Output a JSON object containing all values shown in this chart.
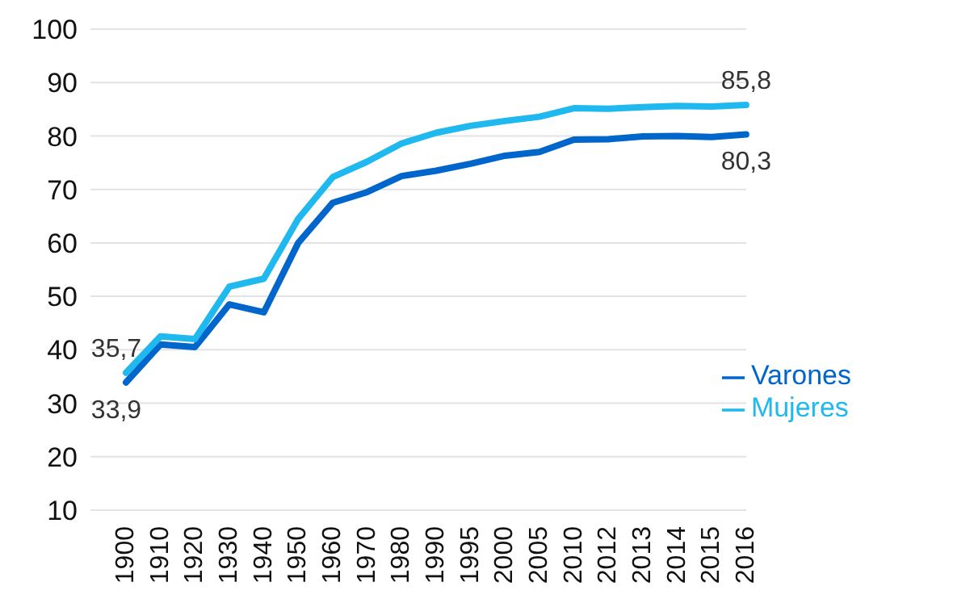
{
  "chart_data": {
    "type": "line",
    "categories": [
      "1900",
      "1910",
      "1920",
      "1930",
      "1940",
      "1950",
      "1960",
      "1970",
      "1980",
      "1990",
      "1995",
      "2000",
      "2005",
      "2010",
      "2012",
      "2013",
      "2014",
      "2015",
      "2016"
    ],
    "series": [
      {
        "name": "Varones",
        "color": "#0066cc",
        "values": [
          33.9,
          41,
          40.5,
          48.5,
          47,
          60,
          67.5,
          69.5,
          72.5,
          73.5,
          74.8,
          76.3,
          77,
          79.3,
          79.4,
          79.9,
          80,
          79.8,
          80.3
        ],
        "value_labels": [
          "33,9",
          null,
          null,
          null,
          null,
          null,
          null,
          null,
          null,
          null,
          null,
          null,
          null,
          null,
          null,
          null,
          null,
          null,
          "80,3"
        ]
      },
      {
        "name": "Mujeres",
        "color": "#1fb8ef",
        "values": [
          35.7,
          42.5,
          42,
          51.8,
          53.3,
          64.5,
          72.3,
          75.2,
          78.6,
          80.6,
          81.9,
          82.8,
          83.6,
          85.2,
          85.1,
          85.4,
          85.6,
          85.5,
          85.8
        ],
        "value_labels": [
          "35,7",
          null,
          null,
          null,
          null,
          null,
          null,
          null,
          null,
          null,
          null,
          null,
          null,
          null,
          null,
          null,
          null,
          null,
          "85,8"
        ]
      }
    ],
    "ylim": [
      10,
      100
    ],
    "yticks": [
      10,
      20,
      30,
      40,
      50,
      60,
      70,
      80,
      90,
      100
    ],
    "grid": "y",
    "legend": "bottom right",
    "marker": "none",
    "line_style": "solid"
  }
}
